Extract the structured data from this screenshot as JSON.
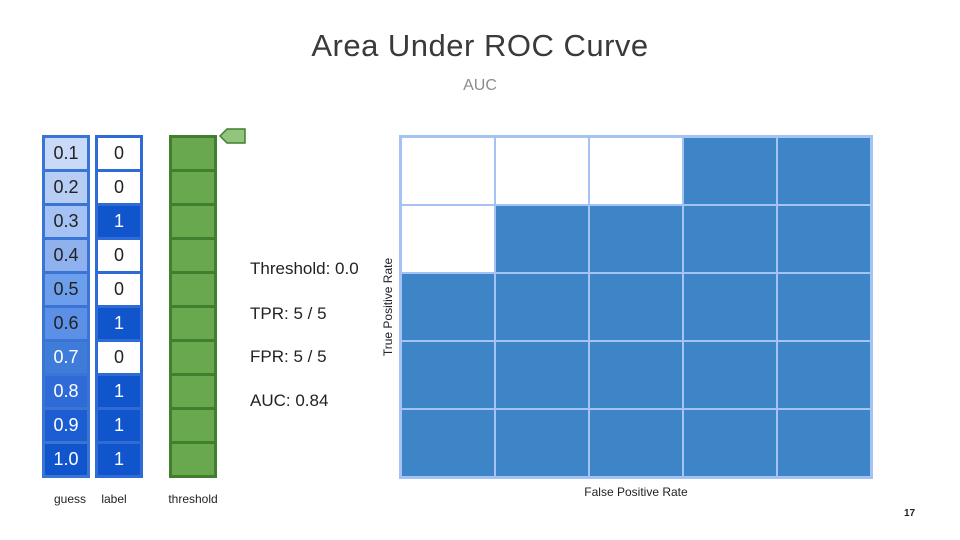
{
  "title": "Area Under ROC Curve",
  "subtitle": "AUC",
  "guess_values": [
    "0.1",
    "0.2",
    "0.3",
    "0.4",
    "0.5",
    "0.6",
    "0.7",
    "0.8",
    "0.9",
    "1.0"
  ],
  "label_values": [
    "0",
    "0",
    "1",
    "0",
    "0",
    "1",
    "0",
    "1",
    "1",
    "1"
  ],
  "column_captions": {
    "guess": "guess",
    "label": "label",
    "threshold": "threshold"
  },
  "threshold_cell_count": 10,
  "stats": {
    "threshold": "Threshold: 0.0",
    "tpr": "TPR: 5 / 5",
    "fpr": "FPR: 5 / 5",
    "auc": "AUC: 0.84"
  },
  "roc_grid": {
    "ylabel": "True Positive Rate",
    "xlabel": "False Positive Rate",
    "rows": [
      [
        0,
        0,
        0,
        1,
        1
      ],
      [
        0,
        1,
        1,
        1,
        1
      ],
      [
        1,
        1,
        1,
        1,
        1
      ],
      [
        1,
        1,
        1,
        1,
        1
      ],
      [
        1,
        1,
        1,
        1,
        1
      ]
    ],
    "filled_color": "#3d85c6",
    "empty_color": "#ffffff"
  },
  "colors": {
    "guess_shades": [
      "#c9daf8",
      "#b7cdf4",
      "#a4c2f4",
      "#8fb2ee",
      "#6d9eeb",
      "#5b90e6",
      "#3f7bd9",
      "#2f6bd6",
      "#1c5dd1",
      "#1155cc"
    ],
    "label_true": "#1155cc",
    "label_false": "#ffffff",
    "threshold_fill": "#6aa84f"
  },
  "page_number": "17"
}
